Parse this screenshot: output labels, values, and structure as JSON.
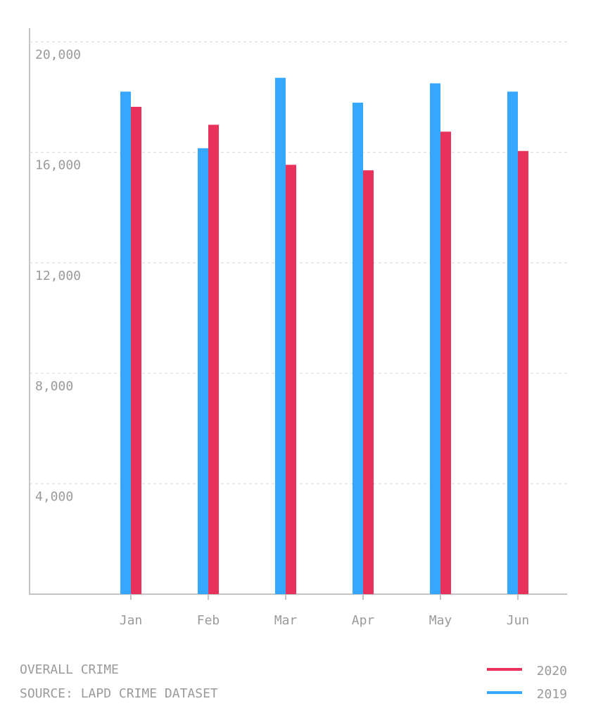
{
  "chart_data": {
    "type": "bar",
    "title": "OVERALL CRIME",
    "source": "SOURCE: LAPD CRIME DATASET",
    "categories": [
      "Jan",
      "Feb",
      "Mar",
      "Apr",
      "May",
      "Jun"
    ],
    "series": [
      {
        "name": "2019",
        "color": "#35a7ff",
        "values": [
          18200,
          16150,
          18700,
          17800,
          18500,
          18200
        ]
      },
      {
        "name": "2020",
        "color": "#e8315b",
        "values": [
          17650,
          17000,
          15550,
          15350,
          16750,
          16050
        ]
      }
    ],
    "ylim": [
      0,
      20500
    ],
    "yticks": [
      {
        "value": 4000,
        "label": "4,000"
      },
      {
        "value": 8000,
        "label": "8,000"
      },
      {
        "value": 12000,
        "label": "12,000"
      },
      {
        "value": 16000,
        "label": "16,000"
      },
      {
        "value": 20000,
        "label": "20,000"
      }
    ],
    "grid": true
  }
}
